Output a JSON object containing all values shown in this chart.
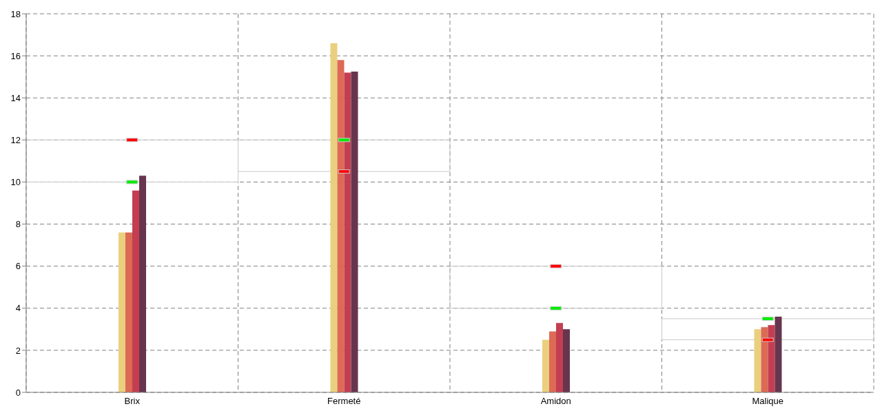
{
  "chart_data": {
    "type": "bar",
    "categories": [
      "Brix",
      "Fermeté",
      "Amidon",
      "Malique"
    ],
    "series": [
      {
        "color": "#eacf7e",
        "values": [
          7.6,
          16.6,
          2.5,
          3.0
        ]
      },
      {
        "color": "#dc6a55",
        "values": [
          7.6,
          15.8,
          2.9,
          3.1
        ]
      },
      {
        "color": "#c43e52",
        "values": [
          9.6,
          15.2,
          3.3,
          3.2
        ]
      },
      {
        "color": "#67354e",
        "values": [
          10.3,
          15.25,
          3.0,
          3.6
        ]
      },
      {
        "type": "scatter",
        "color": "#ff0000",
        "values": [
          12,
          10.5,
          6,
          2.5
        ]
      },
      {
        "type": "scatter",
        "color": "#00ee00",
        "values": [
          10,
          12,
          4,
          3.5
        ]
      }
    ],
    "ylim": [
      0,
      18
    ],
    "yticks": [
      0,
      2,
      4,
      6,
      8,
      10,
      12,
      14,
      16,
      18
    ],
    "grid": true
  }
}
